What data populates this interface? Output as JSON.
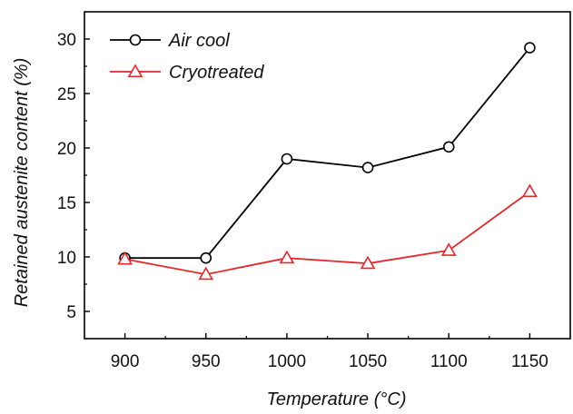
{
  "chart_data": {
    "type": "line",
    "title": "",
    "xlabel": "Temperature (°C)",
    "ylabel": "Retained austenite content (%)",
    "x": [
      900,
      950,
      1000,
      1050,
      1100,
      1150
    ],
    "xlim": [
      875,
      1175
    ],
    "ylim": [
      2.5,
      32.5
    ],
    "xticks": [
      900,
      950,
      1000,
      1050,
      1100,
      1150
    ],
    "yticks": [
      5,
      10,
      15,
      20,
      25,
      30
    ],
    "grid": false,
    "legend_position": "top-left",
    "series": [
      {
        "name": "Air cool",
        "color": "#000000",
        "marker": "circle",
        "values": [
          9.9,
          9.9,
          19.0,
          18.2,
          20.1,
          29.2
        ]
      },
      {
        "name": "Cryotreated",
        "color": "#e8262b",
        "marker": "triangle",
        "values": [
          9.8,
          8.4,
          9.9,
          9.4,
          10.6,
          16.0
        ]
      }
    ]
  }
}
